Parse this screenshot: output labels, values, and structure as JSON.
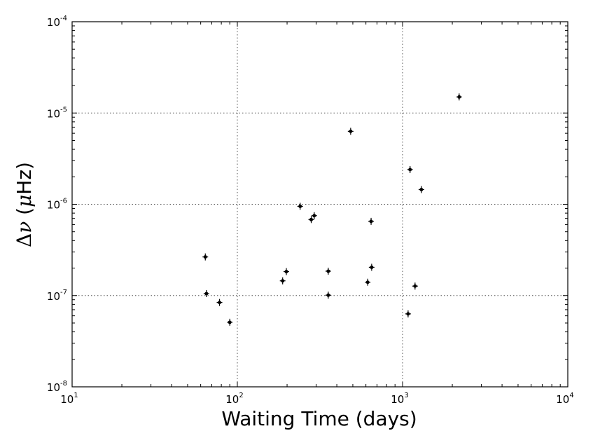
{
  "chart_data": {
    "type": "scatter",
    "title": "",
    "xlabel": "Waiting Time (days)",
    "ylabel": {
      "delta": "Δ",
      "nu": "ν",
      "open": " (",
      "mu": "μ",
      "unit": "Hz",
      "close": ")"
    },
    "xscale": "log",
    "yscale": "log",
    "xlim": [
      10,
      10000
    ],
    "ylim": [
      1e-08,
      0.0001
    ],
    "grid": true,
    "x_ticks": [
      {
        "base": "10",
        "exp": "1",
        "value": 10
      },
      {
        "base": "10",
        "exp": "2",
        "value": 100
      },
      {
        "base": "10",
        "exp": "3",
        "value": 1000
      },
      {
        "base": "10",
        "exp": "4",
        "value": 10000
      }
    ],
    "y_ticks": [
      {
        "base": "10",
        "exp": "-8",
        "value": 1e-08
      },
      {
        "base": "10",
        "exp": "-7",
        "value": 1e-07
      },
      {
        "base": "10",
        "exp": "-6",
        "value": 1e-06
      },
      {
        "base": "10",
        "exp": "-5",
        "value": 1e-05
      },
      {
        "base": "10",
        "exp": "-4",
        "value": 0.0001
      }
    ],
    "points": [
      {
        "x": 64,
        "y": 2.65e-07
      },
      {
        "x": 65,
        "y": 1.05e-07
      },
      {
        "x": 78,
        "y": 8.4e-08
      },
      {
        "x": 90,
        "y": 5.1e-08
      },
      {
        "x": 188,
        "y": 1.45e-07
      },
      {
        "x": 198,
        "y": 1.83e-07
      },
      {
        "x": 240,
        "y": 9.5e-07
      },
      {
        "x": 280,
        "y": 6.8e-07
      },
      {
        "x": 292,
        "y": 7.5e-07
      },
      {
        "x": 355,
        "y": 1.85e-07
      },
      {
        "x": 355,
        "y": 1.01e-07
      },
      {
        "x": 485,
        "y": 6.3e-06
      },
      {
        "x": 615,
        "y": 1.4e-07
      },
      {
        "x": 645,
        "y": 6.5e-07
      },
      {
        "x": 650,
        "y": 2.04e-07
      },
      {
        "x": 1080,
        "y": 6.3e-08
      },
      {
        "x": 1110,
        "y": 2.4e-06
      },
      {
        "x": 1190,
        "y": 1.27e-07
      },
      {
        "x": 1300,
        "y": 1.45e-06
      },
      {
        "x": 2200,
        "y": 1.5e-05
      }
    ]
  }
}
